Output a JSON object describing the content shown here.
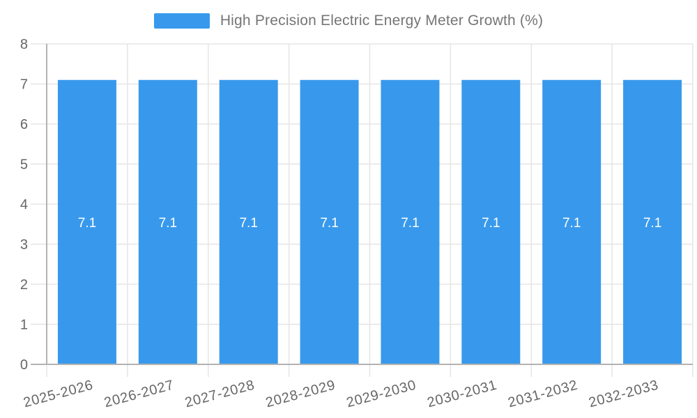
{
  "chart_data": {
    "type": "bar",
    "title": "High Precision Electric Energy Meter Growth (%)",
    "categories": [
      "2025-2026",
      "2026-2027",
      "2027-2028",
      "2028-2029",
      "2029-2030",
      "2030-2031",
      "2031-2032",
      "2032-2033"
    ],
    "values": [
      7.1,
      7.1,
      7.1,
      7.1,
      7.1,
      7.1,
      7.1,
      7.1
    ],
    "value_labels": [
      "7.1",
      "7.1",
      "7.1",
      "7.1",
      "7.1",
      "7.1",
      "7.1",
      "7.1"
    ],
    "xlabel": "",
    "ylabel": "",
    "ylim": [
      0,
      8
    ],
    "y_ticks": [
      0,
      1,
      2,
      3,
      4,
      5,
      6,
      7,
      8
    ],
    "grid": true,
    "legend_position": "top",
    "bar_color": "#3899EC",
    "value_label_color": "#ffffff"
  },
  "legend": {
    "label": "High Precision Electric Energy Meter Growth (%)"
  },
  "colors": {
    "background": "#ffffff",
    "bar": "#3899EC",
    "grid": "#e5e5e5",
    "axis": "#b3b3b3",
    "tick_label": "#666666",
    "legend_text": "#757575"
  }
}
